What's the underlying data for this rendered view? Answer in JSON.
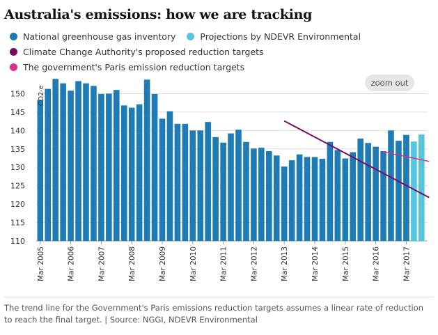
{
  "title": "Australia's emissions: how we are tracking",
  "legend": [
    {
      "label": "National greenhouse gas inventory",
      "color": "#1f7bb3"
    },
    {
      "label": "Projections by NDEVR Environmental",
      "color": "#55c6de"
    },
    {
      "label": "Climate Change Authority's proposed reduction targets",
      "color": "#7b0a62"
    },
    {
      "label": "The government's Paris emission reduction targets",
      "color": "#d9318a"
    }
  ],
  "zoom_label": "zoom out",
  "footer": "The trend line for the Government's Paris emissions reduction targets assumes a linear rate of reduction to reach the final target. | Source: NGGI, NDEVR Environmental",
  "colors": {
    "inventory": "#1f7bb3",
    "projection": "#55c6de",
    "cca": "#7b0a62",
    "paris": "#d9318a",
    "grid": "#dddddd",
    "axis_text": "#333333"
  },
  "chart_data": {
    "type": "bar",
    "ylabel": "CO2-e",
    "ylim": [
      110,
      155
    ],
    "yticks": [
      110,
      115,
      120,
      125,
      130,
      135,
      140,
      145,
      150
    ],
    "quarter_start": "Mar 2005",
    "xtick_labels": [
      "Mar 2005",
      "Mar 2006",
      "Mar 2007",
      "Mar 2008",
      "Mar 2009",
      "Mar 2010",
      "Mar 2011",
      "Mar 2012",
      "Mar 2013",
      "Mar 2014",
      "Mar 2015",
      "Mar 2016",
      "Mar 2017"
    ],
    "series": [
      {
        "name": "National greenhouse gas inventory",
        "values": [
          148.3,
          151.3,
          154.0,
          152.8,
          150.8,
          153.4,
          152.8,
          152.1,
          149.9,
          150.0,
          151.0,
          146.8,
          146.2,
          147.1,
          153.8,
          149.9,
          143.2,
          145.2,
          141.8,
          141.8,
          140.0,
          140.0,
          142.3,
          138.2,
          136.7,
          139.2,
          140.2,
          136.9,
          135.1,
          135.3,
          134.4,
          133.2,
          130.2,
          131.9,
          133.5,
          132.8,
          132.8,
          132.3,
          136.9,
          134.7,
          132.4,
          134.1,
          137.8,
          136.6,
          135.6,
          134.4,
          140.0,
          137.2,
          138.8
        ]
      },
      {
        "name": "Projections by NDEVR Environmental",
        "values": [
          137.0,
          138.9
        ]
      }
    ],
    "lines": [
      {
        "name": "Climate Change Authority's proposed reduction targets",
        "start": [
          "Mar 2013",
          142.6
        ],
        "end": [
          "Dec 2017",
          121.8
        ]
      },
      {
        "name": "The government's Paris emission reduction targets",
        "start": [
          "Jun 2016",
          134.2
        ],
        "end": [
          "Dec 2017",
          131.6
        ]
      }
    ],
    "grid": true
  }
}
